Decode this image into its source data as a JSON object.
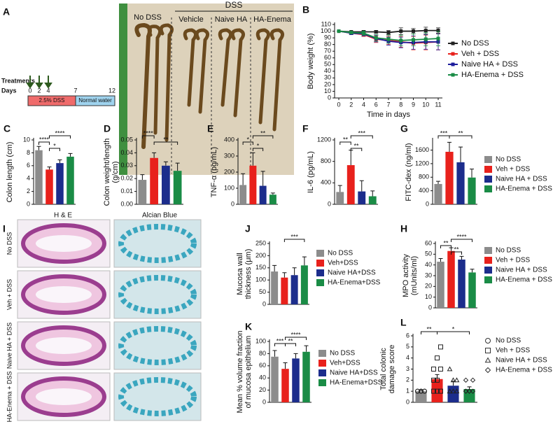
{
  "figure": {
    "panel_a": {
      "letter": "A",
      "treatments": "Treatments",
      "days": "Days",
      "day_ticks": [
        0,
        2,
        4,
        7,
        12
      ],
      "dss_phase": "2.5% DSS",
      "water_phase": "Normal water",
      "photo_group": "DSS",
      "photo_labels": [
        "No DSS",
        "Vehicle",
        "Naive HA",
        "HA-Enema"
      ]
    },
    "panel_i": {
      "letter": "I",
      "columns": [
        "H & E",
        "Alcian Blue"
      ],
      "rows": [
        "No DSS",
        "Veh + DSS",
        "Naive HA + DSS",
        "HA-Enema + DSS"
      ]
    }
  },
  "chart_data": [
    {
      "type": "line",
      "panel": "B",
      "ylabel": "Body weight (%)",
      "xlabel": "Time in days",
      "categories": [
        "0",
        "2",
        "4",
        "6",
        "7",
        "8",
        "9",
        "10",
        "11"
      ],
      "ylim": [
        0,
        110
      ],
      "yticks": [
        0,
        10,
        20,
        30,
        40,
        50,
        60,
        70,
        80,
        90,
        100,
        110
      ],
      "legend": true,
      "series": [
        {
          "name": "No DSS",
          "color": "#222222",
          "values": [
            100,
            99,
            99,
            99,
            98,
            100,
            100,
            101,
            101
          ],
          "errors": [
            0,
            1,
            2,
            2,
            3,
            5,
            4,
            5,
            4
          ]
        },
        {
          "name": "Veh + DSS",
          "color": "#e8211c",
          "values": [
            100,
            97,
            95,
            88,
            86,
            84,
            82,
            83,
            84
          ],
          "errors": [
            0,
            2,
            3,
            5,
            6,
            8,
            10,
            11,
            12
          ]
        },
        {
          "name": "Naive HA + DSS",
          "color": "#1c1c9c",
          "values": [
            100,
            97,
            96,
            89,
            85,
            83,
            83,
            84,
            84
          ],
          "errors": [
            0,
            2,
            3,
            5,
            6,
            8,
            10,
            11,
            12
          ]
        },
        {
          "name": "HA-Enema + DSS",
          "color": "#1a8c46",
          "values": [
            100,
            98,
            97,
            90,
            88,
            86,
            87,
            88,
            89
          ],
          "errors": [
            0,
            2,
            3,
            5,
            6,
            8,
            9,
            10,
            11
          ]
        }
      ]
    },
    {
      "type": "bar",
      "panel": "C",
      "ylabel": "Colon length (cm)",
      "ylim": [
        0,
        10
      ],
      "yticks": [
        0,
        2,
        4,
        6,
        8,
        10
      ],
      "values": [
        8.4,
        5.4,
        6.4,
        7.4
      ],
      "errors": [
        0.6,
        0.4,
        0.5,
        0.5
      ],
      "colors": [
        "#8c8c8c",
        "#e8211c",
        "#1c2d8c",
        "#1a8c46"
      ],
      "annotations": [
        "****",
        "*",
        "****"
      ]
    },
    {
      "type": "bar",
      "panel": "D",
      "ylabel": [
        "Colon weight/length",
        "(g/cm)"
      ],
      "ylim": [
        0,
        0.05
      ],
      "yticks": [
        {
          "value": 0,
          "label": "0.00"
        },
        {
          "value": 0.01,
          "label": "0.01"
        },
        {
          "value": 0.02,
          "label": "0.02"
        },
        {
          "value": 0.03,
          "label": "0.03"
        },
        {
          "value": 0.04,
          "label": "0.04"
        },
        {
          "value": 0.05,
          "label": "0.05"
        }
      ],
      "values": [
        0.019,
        0.036,
        0.03,
        0.026
      ],
      "errors": [
        0.004,
        0.004,
        0.003,
        0.006
      ],
      "colors": [
        "#8c8c8c",
        "#e8211c",
        "#1c2d8c",
        "#1a8c46"
      ],
      "annotations": [
        "****",
        "**"
      ]
    },
    {
      "type": "bar",
      "panel": "E",
      "ylabel": "TNF-α (pg/mL)",
      "ylim": [
        0,
        400
      ],
      "yticks": [
        0,
        100,
        200,
        300,
        400
      ],
      "values": [
        120,
        240,
        115,
        60
      ],
      "errors": [
        70,
        80,
        90,
        10
      ],
      "colors": [
        "#8c8c8c",
        "#e8211c",
        "#1c2d8c",
        "#1a8c46"
      ],
      "annotations": [
        "*",
        "*",
        "**"
      ]
    },
    {
      "type": "bar",
      "panel": "F",
      "ylabel": "IL-6 (pg/mL)",
      "ylim": [
        0,
        1200
      ],
      "yticks": [
        0,
        400,
        800,
        1200
      ],
      "values": [
        230,
        730,
        240,
        150
      ],
      "errors": [
        120,
        280,
        200,
        100
      ],
      "colors": [
        "#8c8c8c",
        "#e8211c",
        "#1c2d8c",
        "#1a8c46"
      ],
      "annotations": [
        "**",
        "**",
        "***"
      ]
    },
    {
      "type": "bar",
      "panel": "G",
      "ylabel": "FITC-dex (ng/ml)",
      "ylim": [
        0,
        1900
      ],
      "yticks": [
        0,
        400,
        800,
        1200,
        1600
      ],
      "values": [
        600,
        1550,
        1240,
        790
      ],
      "errors": [
        80,
        280,
        450,
        250
      ],
      "colors": [
        "#8c8c8c",
        "#e8211c",
        "#1c2d8c",
        "#1a8c46"
      ],
      "annotations": [
        "***",
        "**"
      ],
      "legend": [
        "No DSS",
        "Veh + DSS",
        "Naive HA + DSS",
        "HA-Enema + DSS"
      ]
    },
    {
      "type": "bar",
      "panel": "H",
      "ylabel": [
        "MPO activity",
        "(mUnits/ml)"
      ],
      "ylim": [
        0,
        60
      ],
      "yticks": [
        0,
        10,
        20,
        30,
        40,
        50,
        60
      ],
      "values": [
        43,
        53,
        45,
        33
      ],
      "errors": [
        3,
        3,
        3,
        3
      ],
      "colors": [
        "#8c8c8c",
        "#e8211c",
        "#1c2d8c",
        "#1a8c46"
      ],
      "annotations": [
        "**",
        "**",
        "****"
      ],
      "legend": [
        "No DSS",
        "Veh + DSS",
        "Naive HA + DSS",
        "HA-Enema + DSS"
      ]
    },
    {
      "type": "bar",
      "panel": "J",
      "ylabel": [
        "Mucosa wall",
        "thickness (μm)"
      ],
      "ylim": [
        0,
        250
      ],
      "yticks": [
        0,
        50,
        100,
        150,
        200,
        250
      ],
      "values": [
        135,
        110,
        120,
        160
      ],
      "errors": [
        25,
        20,
        30,
        35
      ],
      "colors": [
        "#8c8c8c",
        "#e8211c",
        "#1c2d8c",
        "#1a8c46"
      ],
      "annotations": [
        "***"
      ],
      "legend": [
        "No DSS",
        "Veh+DSS",
        "Naive HA+DSS",
        "HA-Enema+DSS"
      ]
    },
    {
      "type": "bar",
      "panel": "K",
      "ylabel": [
        "Mean % volume fraction",
        "of mucosa epithelium"
      ],
      "ylim": [
        0,
        100
      ],
      "yticks": [
        0,
        20,
        40,
        60,
        80,
        100
      ],
      "values": [
        75,
        55,
        72,
        83
      ],
      "errors": [
        10,
        10,
        8,
        10
      ],
      "colors": [
        "#8c8c8c",
        "#e8211c",
        "#1c2d8c",
        "#1a8c46"
      ],
      "annotations": [
        "***",
        "**",
        "****"
      ],
      "legend": [
        "No DSS",
        "Veh+DSS",
        "Naive HA+DSS",
        "HA-Enema+DSS"
      ]
    },
    {
      "type": "bar",
      "panel": "L",
      "ylabel": [
        "Total colonic",
        "damage score"
      ],
      "ylim": [
        0,
        6
      ],
      "yticks": [
        0,
        1,
        2,
        3,
        4,
        5,
        6
      ],
      "values": [
        1.0,
        2.1,
        1.5,
        1.2
      ],
      "errors": [
        0.1,
        0.4,
        0.4,
        0.2
      ],
      "colors": [
        "#8c8c8c",
        "#e8211c",
        "#1c2d8c",
        "#1a8c46"
      ],
      "points": [
        [
          1,
          1,
          1,
          1,
          1,
          1
        ],
        [
          1,
          1,
          1,
          2,
          2,
          3,
          3,
          4,
          5
        ],
        [
          1,
          1,
          1,
          1,
          2,
          2,
          3
        ],
        [
          1,
          1,
          1,
          1,
          1,
          2,
          2
        ]
      ],
      "markers": [
        "circle",
        "square",
        "triangle",
        "diamond"
      ],
      "annotations": [
        "**",
        "*"
      ],
      "legend": [
        "No DSS",
        "Veh + DSS",
        "Naive HA + DSS",
        "HA-Enema + DSS"
      ]
    }
  ]
}
